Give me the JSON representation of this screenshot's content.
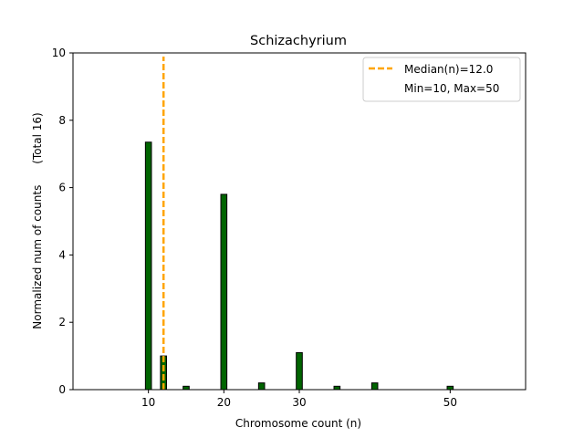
{
  "chart_data": {
    "type": "bar",
    "title": "Schizachyrium",
    "xlabel": "Chromosome count (n)",
    "ylabel": "Normalized num of counts      (Total 16)",
    "xlim": [
      0,
      60
    ],
    "ylim": [
      0,
      10
    ],
    "xticks": [
      10,
      20,
      30,
      50
    ],
    "yticks": [
      0,
      2,
      4,
      6,
      8,
      10
    ],
    "bar_width": 0.8,
    "bar_color": "#006400",
    "bar_edge_color": "#000000",
    "bars": [
      {
        "x": 10,
        "value": 7.35
      },
      {
        "x": 12,
        "value": 1.0
      },
      {
        "x": 15,
        "value": 0.1
      },
      {
        "x": 20,
        "value": 5.8
      },
      {
        "x": 25,
        "value": 0.2
      },
      {
        "x": 30,
        "value": 1.1
      },
      {
        "x": 35,
        "value": 0.1
      },
      {
        "x": 40,
        "value": 0.2
      },
      {
        "x": 50,
        "value": 0.1
      }
    ],
    "median_line": {
      "x": 12,
      "color": "#FFA500",
      "style": "dashed"
    },
    "legend": {
      "position": "upper right",
      "entries": [
        {
          "label": "Median(n)=12.0",
          "kind": "line",
          "color": "#FFA500"
        },
        {
          "label": "Min=10, Max=50",
          "kind": "none"
        }
      ]
    }
  }
}
